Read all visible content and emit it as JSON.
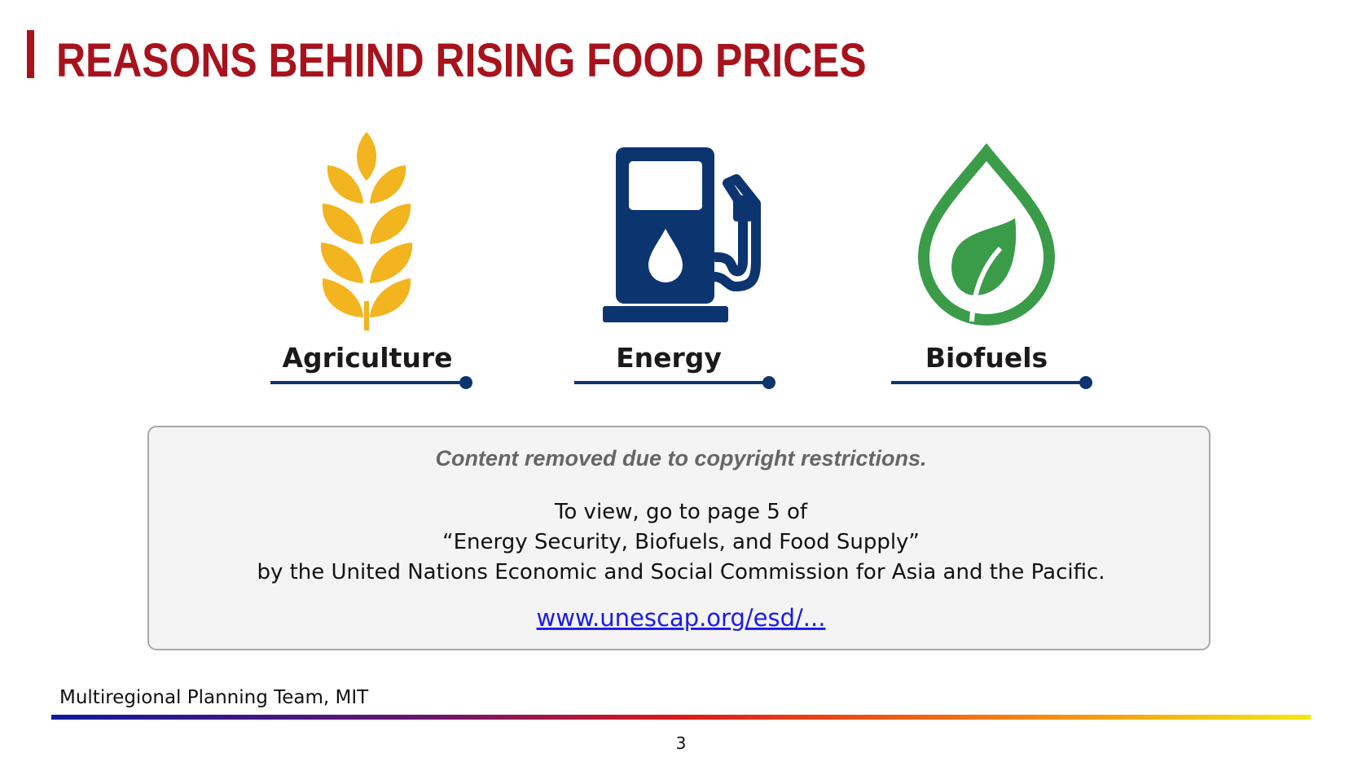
{
  "header": {
    "title": "REASONS BEHIND RISING FOOD PRICES"
  },
  "items": [
    {
      "label": "Agriculture"
    },
    {
      "label": "Energy"
    },
    {
      "label": "Biofuels"
    }
  ],
  "notice": {
    "heading": "Content removed due to copyright restrictions.",
    "lines": [
      "To view, go to page 5 of",
      "“Energy Security, Biofuels, and Food Supply”",
      "by the United Nations Economic and Social Commission for Asia and the Pacific."
    ],
    "link": "www.unescap.org/esd/..."
  },
  "footer": {
    "credit": "Multiregional Planning Team, MIT",
    "page_number": "3"
  }
}
